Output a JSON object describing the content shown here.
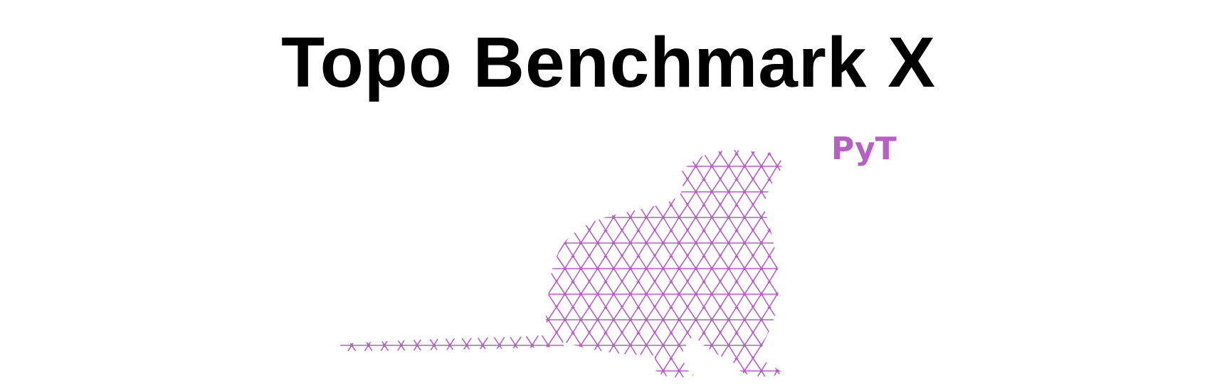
{
  "header": {
    "title": "Topo Benchmark X",
    "badge": "PyT"
  },
  "logo": {
    "icon": "rat-mesh-icon",
    "color": "#b760c4"
  }
}
